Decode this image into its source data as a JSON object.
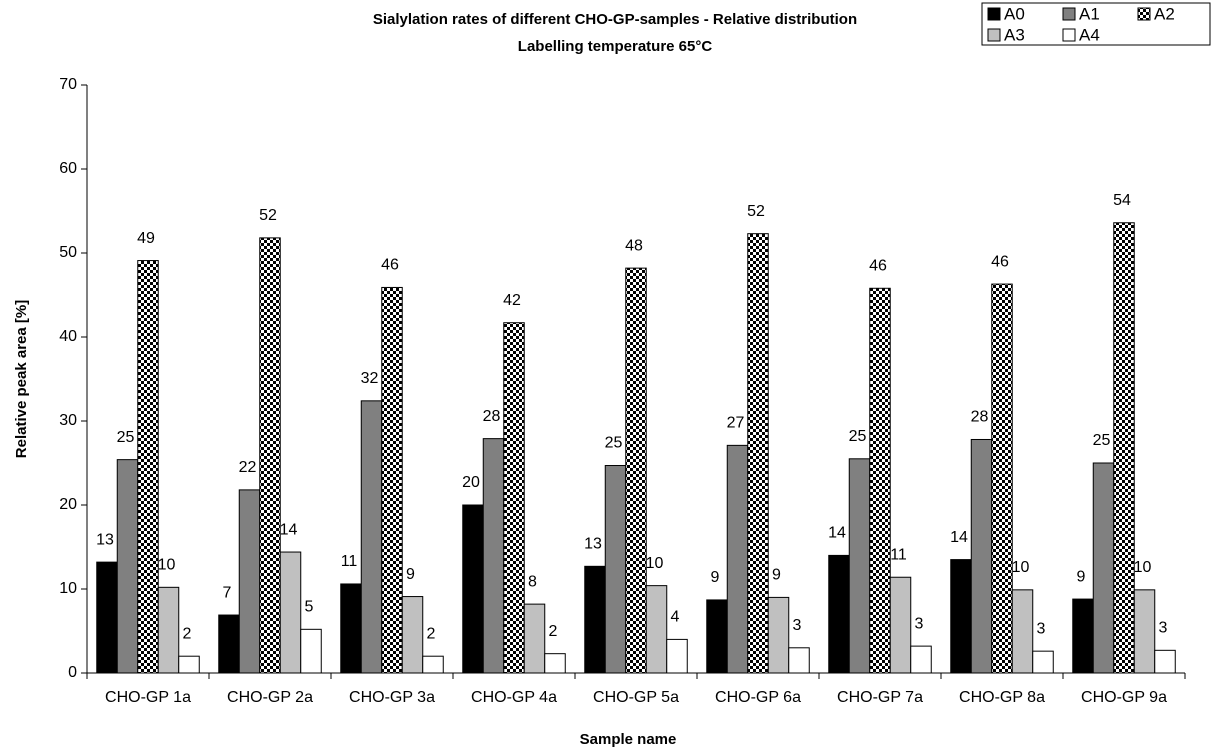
{
  "chart_data": {
    "type": "bar",
    "title": "Sialylation rates of different CHO-GP-samples - Relative distribution",
    "subtitle": "Labelling temperature 65°C",
    "x_label": "Sample name",
    "y_label": "Relative peak area [%]",
    "categories": [
      "CHO-GP 1a",
      "CHO-GP 2a",
      "CHO-GP 3a",
      "CHO-GP 4a",
      "CHO-GP 5a",
      "CHO-GP 6a",
      "CHO-GP 7a",
      "CHO-GP 8a",
      "CHO-GP 9a"
    ],
    "series": [
      {
        "name": "A0",
        "color": "#000000",
        "values": [
          13.2,
          6.9,
          10.6,
          20.0,
          12.7,
          8.7,
          14.0,
          13.5,
          8.8
        ],
        "value_labels": [
          "13",
          "7",
          "11",
          "20",
          "13",
          "9",
          "14",
          "14",
          "9"
        ]
      },
      {
        "name": "A1",
        "color": "#808080",
        "values": [
          25.4,
          21.8,
          32.4,
          27.9,
          24.7,
          27.1,
          25.5,
          27.8,
          25.0
        ],
        "value_labels": [
          "25",
          "22",
          "32",
          "28",
          "25",
          "27",
          "25",
          "28",
          "25"
        ]
      },
      {
        "name": "A2",
        "color": "#000000",
        "pattern": "checkerboard",
        "values": [
          49.1,
          51.8,
          45.9,
          41.7,
          48.2,
          52.3,
          45.8,
          46.3,
          53.6
        ],
        "value_labels": [
          "49",
          "52",
          "46",
          "42",
          "48",
          "52",
          "46",
          "46",
          "54"
        ]
      },
      {
        "name": "A3",
        "color": "#c0c0c0",
        "values": [
          10.2,
          14.4,
          9.1,
          8.2,
          10.4,
          9.0,
          11.4,
          9.9,
          9.9
        ],
        "value_labels": [
          "10",
          "14",
          "9",
          "8",
          "10",
          "9",
          "11",
          "10",
          "10"
        ]
      },
      {
        "name": "A4",
        "color": "#ffffff",
        "values": [
          2.0,
          5.2,
          2.0,
          2.3,
          4.0,
          3.0,
          3.2,
          2.6,
          2.7
        ],
        "value_labels": [
          "2",
          "5",
          "2",
          "2",
          "4",
          "3",
          "3",
          "3",
          "3"
        ]
      }
    ],
    "ylim": [
      0,
      70
    ],
    "yticks": [
      0,
      10,
      20,
      30,
      40,
      50,
      60,
      70
    ],
    "grid": false,
    "legend": "top-right"
  }
}
